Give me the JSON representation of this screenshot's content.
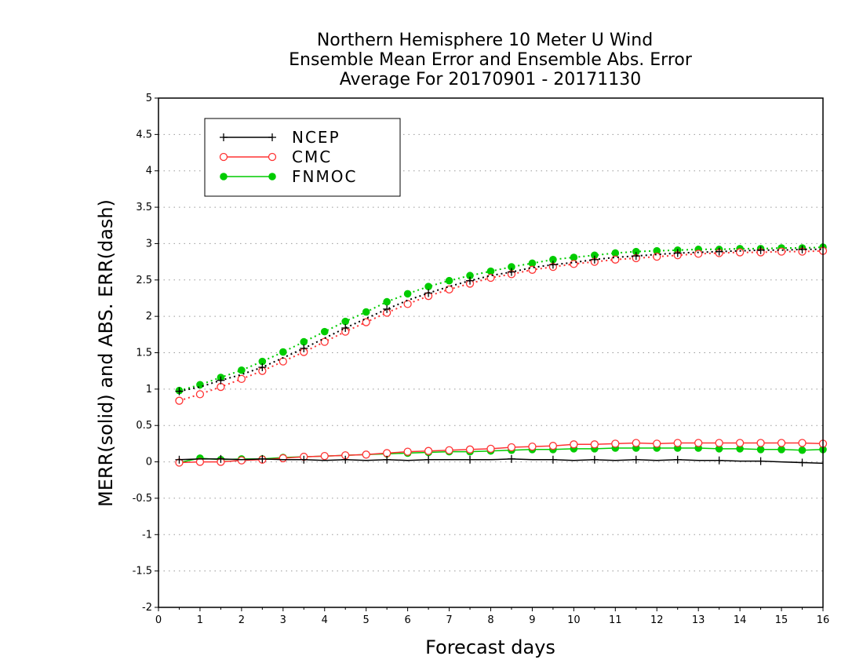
{
  "chart_data": {
    "type": "line",
    "title_lines": [
      "Northern Hemisphere 10 Meter U Wind",
      "Ensemble Mean Error and Ensemble Abs. Error",
      "Average For 20170901 - 20171130"
    ],
    "xlabel": "Forecast days",
    "ylabel": "MERR(solid) and ABS. ERR(dash)",
    "xlim": [
      0,
      16
    ],
    "ylim": [
      -2,
      5
    ],
    "xticks": [
      "0",
      "1",
      "2",
      "3",
      "4",
      "5",
      "6",
      "7",
      "8",
      "9",
      "10",
      "11",
      "12",
      "13",
      "14",
      "15",
      "16"
    ],
    "yticks": [
      "-2",
      "-1.5",
      "-1",
      "-0.5",
      "0",
      "0.5",
      "1",
      "1.5",
      "2",
      "2.5",
      "3",
      "3.5",
      "4",
      "4.5",
      "5"
    ],
    "grid": "horizontal dotted",
    "legend_position": "top-left",
    "legend": [
      "NCEP",
      "CMC",
      "FNMOC"
    ],
    "x": [
      0.5,
      1,
      1.5,
      2,
      2.5,
      3,
      3.5,
      4,
      4.5,
      5,
      5.5,
      6,
      6.5,
      7,
      7.5,
      8,
      8.5,
      9,
      9.5,
      10,
      10.5,
      11,
      11.5,
      12,
      12.5,
      13,
      13.5,
      14,
      14.5,
      15,
      15.5,
      16
    ],
    "series": [
      {
        "name": "NCEP",
        "color": "#000000",
        "marker": "plus",
        "mean_error": [
          0.03,
          0.04,
          0.04,
          0.03,
          0.04,
          0.03,
          0.03,
          0.02,
          0.03,
          0.02,
          0.03,
          0.02,
          0.03,
          0.03,
          0.03,
          0.03,
          0.04,
          0.03,
          0.03,
          0.02,
          0.03,
          0.02,
          0.03,
          0.02,
          0.03,
          0.02,
          0.02,
          0.01,
          0.01,
          0.0,
          -0.01,
          -0.02
        ],
        "abs_error": [
          0.97,
          1.03,
          1.12,
          1.2,
          1.3,
          1.43,
          1.56,
          1.7,
          1.84,
          1.97,
          2.1,
          2.22,
          2.32,
          2.41,
          2.49,
          2.56,
          2.61,
          2.67,
          2.71,
          2.74,
          2.78,
          2.81,
          2.83,
          2.85,
          2.87,
          2.88,
          2.89,
          2.9,
          2.91,
          2.91,
          2.92,
          2.92
        ]
      },
      {
        "name": "CMC",
        "color": "#ff3333",
        "marker": "open-circle",
        "mean_error": [
          -0.01,
          0.0,
          0.0,
          0.02,
          0.03,
          0.05,
          0.07,
          0.08,
          0.09,
          0.1,
          0.12,
          0.14,
          0.15,
          0.16,
          0.17,
          0.18,
          0.2,
          0.21,
          0.22,
          0.24,
          0.24,
          0.25,
          0.26,
          0.25,
          0.26,
          0.26,
          0.26,
          0.26,
          0.26,
          0.26,
          0.26,
          0.25
        ],
        "abs_error": [
          0.84,
          0.93,
          1.03,
          1.14,
          1.25,
          1.38,
          1.51,
          1.65,
          1.79,
          1.92,
          2.05,
          2.17,
          2.28,
          2.37,
          2.45,
          2.53,
          2.58,
          2.64,
          2.68,
          2.72,
          2.75,
          2.78,
          2.8,
          2.82,
          2.84,
          2.86,
          2.87,
          2.88,
          2.88,
          2.89,
          2.89,
          2.9
        ]
      },
      {
        "name": "FNMOC",
        "color": "#00cc00",
        "marker": "filled-circle",
        "mean_error": [
          -0.01,
          0.05,
          0.03,
          0.04,
          0.04,
          0.06,
          0.07,
          0.08,
          0.09,
          0.1,
          0.11,
          0.12,
          0.13,
          0.14,
          0.14,
          0.15,
          0.16,
          0.17,
          0.17,
          0.18,
          0.18,
          0.19,
          0.19,
          0.19,
          0.19,
          0.19,
          0.18,
          0.18,
          0.17,
          0.17,
          0.16,
          0.17
        ],
        "abs_error": [
          0.98,
          1.06,
          1.16,
          1.26,
          1.38,
          1.51,
          1.65,
          1.79,
          1.93,
          2.06,
          2.2,
          2.31,
          2.41,
          2.49,
          2.56,
          2.62,
          2.68,
          2.73,
          2.78,
          2.81,
          2.84,
          2.87,
          2.89,
          2.9,
          2.91,
          2.92,
          2.92,
          2.93,
          2.93,
          2.94,
          2.94,
          2.95
        ]
      }
    ]
  }
}
